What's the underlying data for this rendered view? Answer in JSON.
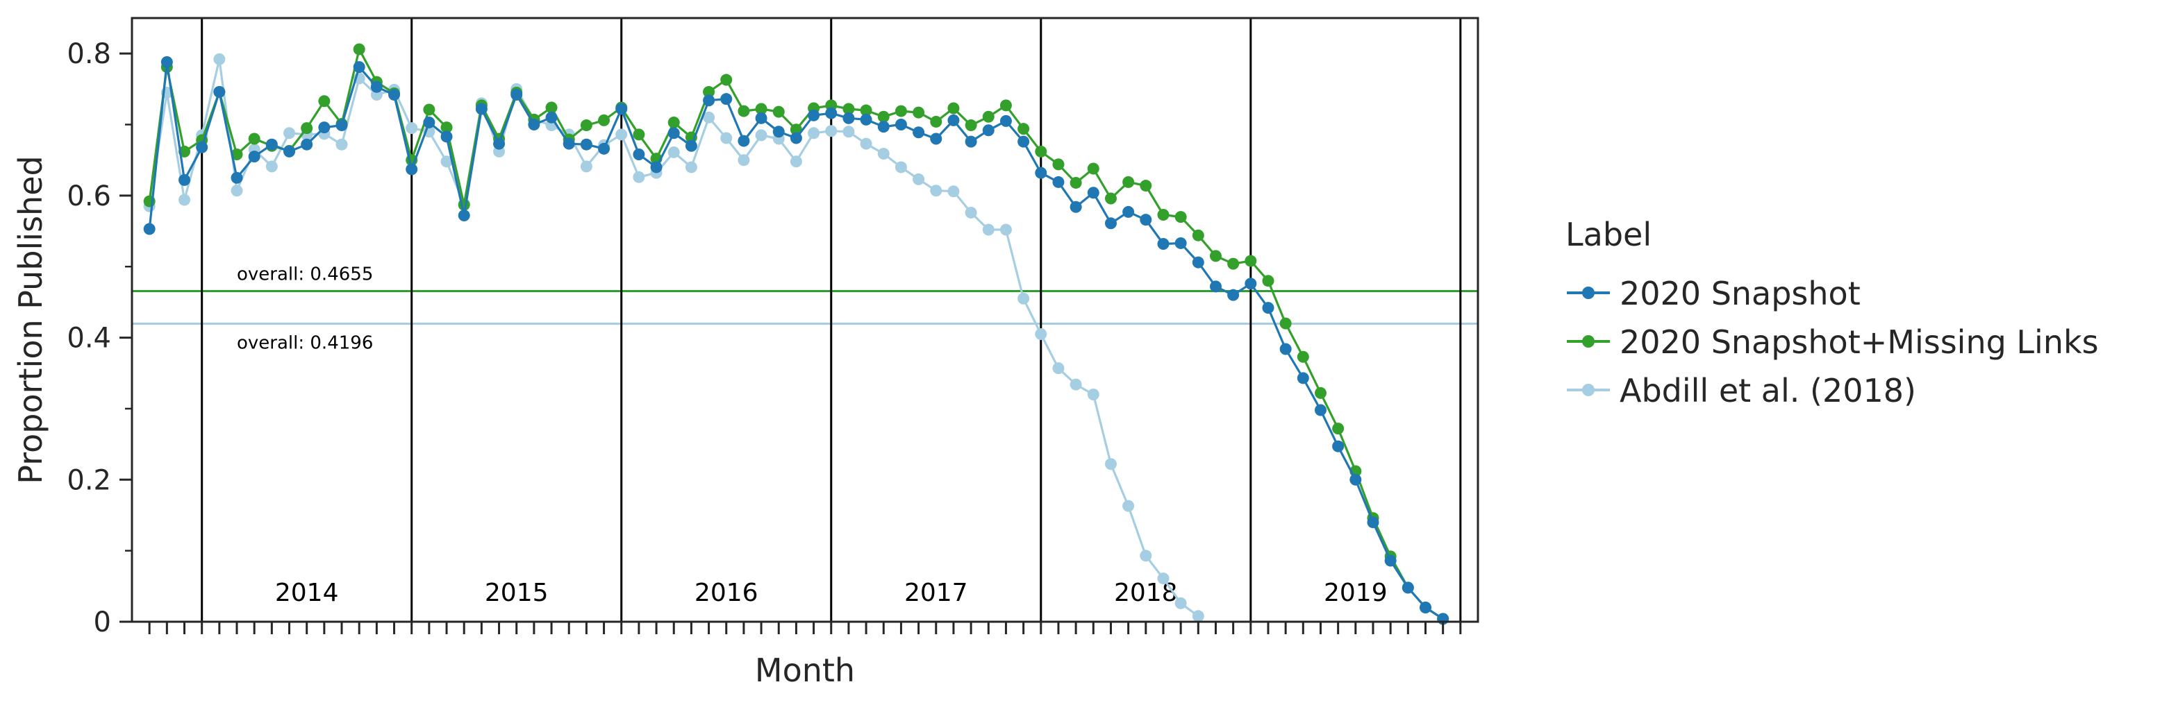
{
  "chart_data": {
    "type": "line",
    "xlabel": "Month",
    "ylabel": "Proportion Published",
    "ylim": [
      0,
      0.85
    ],
    "yticks": [
      0,
      0.2,
      0.4,
      0.6,
      0.8
    ],
    "ytick_labels": [
      "0",
      "0.2",
      "0.4",
      "0.6",
      "0.8"
    ],
    "x_start": "2013-10",
    "x_end": "2020-01",
    "year_boundaries": [
      "2014-01",
      "2015-01",
      "2016-01",
      "2017-01",
      "2018-01",
      "2019-01",
      "2020-01"
    ],
    "year_labels": [
      "2014",
      "2015",
      "2016",
      "2017",
      "2018",
      "2019"
    ],
    "grid": false,
    "legend": {
      "title": "Label",
      "placement": "outside-right",
      "entries": [
        "2020 Snapshot",
        "2020 Snapshot+Missing Links",
        "Abdill et al. (2018)"
      ]
    },
    "reference_lines": [
      {
        "value": 0.4655,
        "label": "overall: 0.4655",
        "color": "#2ca02c"
      },
      {
        "value": 0.4196,
        "label": "overall: 0.4196",
        "color": "#a6cee3"
      }
    ],
    "series": [
      {
        "name": "2020 Snapshot",
        "color": "#1f78b4",
        "start": "2013-10",
        "values": [
          0.553,
          0.788,
          0.622,
          0.668,
          0.746,
          0.625,
          0.655,
          0.672,
          0.662,
          0.672,
          0.696,
          0.699,
          0.781,
          0.753,
          0.742,
          0.637,
          0.703,
          0.683,
          0.572,
          0.722,
          0.673,
          0.742,
          0.7,
          0.71,
          0.673,
          0.672,
          0.666,
          0.722,
          0.658,
          0.64,
          0.688,
          0.67,
          0.734,
          0.736,
          0.677,
          0.709,
          0.69,
          0.681,
          0.713,
          0.716,
          0.709,
          0.707,
          0.697,
          0.7,
          0.689,
          0.68,
          0.706,
          0.676,
          0.692,
          0.705,
          0.676,
          0.632,
          0.619,
          0.584,
          0.604,
          0.561,
          0.577,
          0.566,
          0.532,
          0.533,
          0.506,
          0.472,
          0.46,
          0.476,
          0.442,
          0.384,
          0.343,
          0.298,
          0.247,
          0.2,
          0.14,
          0.086,
          0.048,
          0.02,
          0.004
        ]
      },
      {
        "name": "2020 Snapshot+Missing Links",
        "color": "#33a02c",
        "start": "2013-10",
        "values": [
          0.592,
          0.781,
          0.662,
          0.678,
          0.746,
          0.658,
          0.68,
          0.67,
          0.663,
          0.695,
          0.733,
          0.701,
          0.806,
          0.76,
          0.744,
          0.65,
          0.721,
          0.696,
          0.587,
          0.727,
          0.68,
          0.745,
          0.707,
          0.724,
          0.679,
          0.699,
          0.706,
          0.724,
          0.686,
          0.652,
          0.703,
          0.682,
          0.746,
          0.763,
          0.719,
          0.722,
          0.718,
          0.693,
          0.723,
          0.727,
          0.722,
          0.72,
          0.711,
          0.719,
          0.717,
          0.704,
          0.723,
          0.699,
          0.711,
          0.727,
          0.694,
          0.662,
          0.644,
          0.618,
          0.638,
          0.596,
          0.619,
          0.614,
          0.573,
          0.57,
          0.544,
          0.515,
          0.504,
          0.508,
          0.48,
          0.42,
          0.373,
          0.322,
          0.272,
          0.212,
          0.146,
          0.092,
          0.048,
          0.02,
          0.004
        ]
      },
      {
        "name": "Abdill et al. (2018)",
        "color": "#a6cee3",
        "start": "2013-10",
        "values": [
          0.585,
          0.745,
          0.594,
          0.685,
          0.792,
          0.607,
          0.665,
          0.641,
          0.688,
          0.686,
          0.687,
          0.672,
          0.765,
          0.742,
          0.749,
          0.695,
          0.69,
          0.648,
          0.588,
          0.73,
          0.662,
          0.75,
          0.707,
          0.699,
          0.686,
          0.641,
          0.671,
          0.686,
          0.626,
          0.632,
          0.661,
          0.64,
          0.71,
          0.681,
          0.65,
          0.685,
          0.68,
          0.648,
          0.688,
          0.691,
          0.69,
          0.673,
          0.659,
          0.64,
          0.623,
          0.607,
          0.606,
          0.576,
          0.552,
          0.552,
          0.455,
          0.405,
          0.357,
          0.334,
          0.32,
          0.222,
          0.163,
          0.093,
          0.061,
          0.026,
          0.008
        ]
      }
    ]
  }
}
